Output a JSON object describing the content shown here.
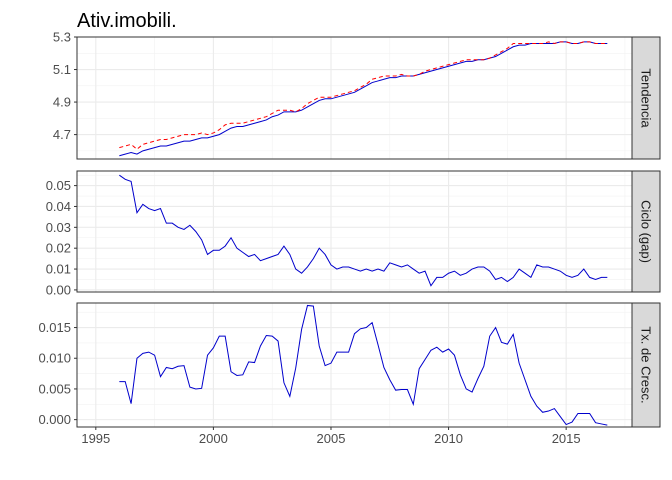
{
  "chart_data": {
    "type": "line",
    "title": "Ativ.imobili.",
    "xlabel": "",
    "ylabel": "",
    "xlim": [
      1994.2,
      2017.8
    ],
    "x_ticks": [
      "1995",
      "2000",
      "2005",
      "2010",
      "2015"
    ],
    "grid": true,
    "colors": {
      "observed": "#0000cc",
      "trend": "#ff0000"
    },
    "panels": [
      {
        "name": "Tendencia",
        "ylim": [
          4.55,
          5.3
        ],
        "y_ticks": [
          "4.7",
          "4.9",
          "5.1",
          "5.3"
        ],
        "series": [
          {
            "style": "solid",
            "color": "#0000cc",
            "x": [
              1996.0,
              1996.25,
              1996.5,
              1996.75,
              1997.0,
              1997.25,
              1997.5,
              1997.75,
              1998.0,
              1998.25,
              1998.5,
              1998.75,
              1999.0,
              1999.25,
              1999.5,
              1999.75,
              2000.0,
              2000.25,
              2000.5,
              2000.75,
              2001.0,
              2001.25,
              2001.5,
              2001.75,
              2002.0,
              2002.25,
              2002.5,
              2002.75,
              2003.0,
              2003.25,
              2003.5,
              2003.75,
              2004.0,
              2004.25,
              2004.5,
              2004.75,
              2005.0,
              2005.25,
              2005.5,
              2005.75,
              2006.0,
              2006.25,
              2006.5,
              2006.75,
              2007.0,
              2007.25,
              2007.5,
              2007.75,
              2008.0,
              2008.25,
              2008.5,
              2008.75,
              2009.0,
              2009.25,
              2009.5,
              2009.75,
              2010.0,
              2010.25,
              2010.5,
              2010.75,
              2011.0,
              2011.25,
              2011.5,
              2011.75,
              2012.0,
              2012.25,
              2012.5,
              2012.75,
              2013.0,
              2013.25,
              2013.5,
              2013.75,
              2014.0,
              2014.25,
              2014.5,
              2014.75,
              2015.0,
              2015.25,
              2015.5,
              2015.75,
              2016.0,
              2016.25,
              2016.5,
              2016.75
            ],
            "y": [
              4.57,
              4.58,
              4.59,
              4.58,
              4.6,
              4.61,
              4.62,
              4.63,
              4.63,
              4.64,
              4.65,
              4.66,
              4.66,
              4.67,
              4.68,
              4.68,
              4.69,
              4.7,
              4.72,
              4.74,
              4.75,
              4.75,
              4.76,
              4.77,
              4.78,
              4.79,
              4.81,
              4.82,
              4.84,
              4.84,
              4.84,
              4.85,
              4.87,
              4.89,
              4.91,
              4.92,
              4.92,
              4.93,
              4.94,
              4.95,
              4.96,
              4.98,
              5.0,
              5.02,
              5.03,
              5.04,
              5.05,
              5.05,
              5.06,
              5.06,
              5.06,
              5.07,
              5.08,
              5.09,
              5.1,
              5.11,
              5.12,
              5.13,
              5.14,
              5.15,
              5.15,
              5.16,
              5.16,
              5.17,
              5.18,
              5.2,
              5.22,
              5.24,
              5.25,
              5.25,
              5.26,
              5.26,
              5.26,
              5.26,
              5.26,
              5.27,
              5.27,
              5.26,
              5.26,
              5.27,
              5.27,
              5.26,
              5.26,
              5.26
            ]
          },
          {
            "style": "dashed",
            "color": "#ff0000",
            "x": [
              1996.0,
              1996.25,
              1996.5,
              1996.75,
              1997.0,
              1997.25,
              1997.5,
              1997.75,
              1998.0,
              1998.25,
              1998.5,
              1998.75,
              1999.0,
              1999.25,
              1999.5,
              1999.75,
              2000.0,
              2000.25,
              2000.5,
              2000.75,
              2001.0,
              2001.25,
              2001.5,
              2001.75,
              2002.0,
              2002.25,
              2002.5,
              2002.75,
              2003.0,
              2003.25,
              2003.5,
              2003.75,
              2004.0,
              2004.25,
              2004.5,
              2004.75,
              2005.0,
              2005.25,
              2005.5,
              2005.75,
              2006.0,
              2006.25,
              2006.5,
              2006.75,
              2007.0,
              2007.25,
              2007.5,
              2007.75,
              2008.0,
              2008.25,
              2008.5,
              2008.75,
              2009.0,
              2009.25,
              2009.5,
              2009.75,
              2010.0,
              2010.25,
              2010.5,
              2010.75,
              2011.0,
              2011.25,
              2011.5,
              2011.75,
              2012.0,
              2012.25,
              2012.5,
              2012.75,
              2013.0,
              2013.25,
              2013.5,
              2013.75,
              2014.0,
              2014.25,
              2014.5,
              2014.75,
              2015.0,
              2015.25,
              2015.5,
              2015.75,
              2016.0,
              2016.25,
              2016.5,
              2016.75
            ],
            "y": [
              4.62,
              4.63,
              4.64,
              4.61,
              4.64,
              4.65,
              4.66,
              4.67,
              4.67,
              4.68,
              4.69,
              4.7,
              4.7,
              4.7,
              4.71,
              4.7,
              4.71,
              4.73,
              4.76,
              4.77,
              4.77,
              4.77,
              4.78,
              4.79,
              4.8,
              4.81,
              4.83,
              4.85,
              4.85,
              4.85,
              4.84,
              4.86,
              4.89,
              4.91,
              4.93,
              4.93,
              4.93,
              4.94,
              4.95,
              4.96,
              4.97,
              4.99,
              5.01,
              5.04,
              5.05,
              5.06,
              5.06,
              5.06,
              5.07,
              5.06,
              5.06,
              5.07,
              5.09,
              5.1,
              5.11,
              5.12,
              5.13,
              5.14,
              5.15,
              5.16,
              5.16,
              5.16,
              5.16,
              5.17,
              5.19,
              5.21,
              5.23,
              5.26,
              5.26,
              5.26,
              5.26,
              5.26,
              5.26,
              5.27,
              5.26,
              5.27,
              5.27,
              5.26,
              5.26,
              5.27,
              5.27,
              5.26,
              5.26,
              5.26
            ]
          }
        ]
      },
      {
        "name": "Ciclo (gap)",
        "ylim": [
          -0.001,
          0.057
        ],
        "y_ticks": [
          "0.00",
          "0.01",
          "0.02",
          "0.03",
          "0.04",
          "0.05"
        ],
        "series": [
          {
            "style": "solid",
            "color": "#0000cc",
            "x": [
              1996.0,
              1996.25,
              1996.5,
              1996.75,
              1997.0,
              1997.25,
              1997.5,
              1997.75,
              1998.0,
              1998.25,
              1998.5,
              1998.75,
              1999.0,
              1999.25,
              1999.5,
              1999.75,
              2000.0,
              2000.25,
              2000.5,
              2000.75,
              2001.0,
              2001.25,
              2001.5,
              2001.75,
              2002.0,
              2002.25,
              2002.5,
              2002.75,
              2003.0,
              2003.25,
              2003.5,
              2003.75,
              2004.0,
              2004.25,
              2004.5,
              2004.75,
              2005.0,
              2005.25,
              2005.5,
              2005.75,
              2006.0,
              2006.25,
              2006.5,
              2006.75,
              2007.0,
              2007.25,
              2007.5,
              2007.75,
              2008.0,
              2008.25,
              2008.5,
              2008.75,
              2009.0,
              2009.25,
              2009.5,
              2009.75,
              2010.0,
              2010.25,
              2010.5,
              2010.75,
              2011.0,
              2011.25,
              2011.5,
              2011.75,
              2012.0,
              2012.25,
              2012.5,
              2012.75,
              2013.0,
              2013.25,
              2013.5,
              2013.75,
              2014.0,
              2014.25,
              2014.5,
              2014.75,
              2015.0,
              2015.25,
              2015.5,
              2015.75,
              2016.0,
              2016.25,
              2016.5,
              2016.75
            ],
            "y": [
              0.055,
              0.053,
              0.052,
              0.037,
              0.041,
              0.039,
              0.038,
              0.039,
              0.032,
              0.032,
              0.03,
              0.029,
              0.031,
              0.028,
              0.024,
              0.017,
              0.019,
              0.019,
              0.021,
              0.025,
              0.02,
              0.018,
              0.016,
              0.017,
              0.014,
              0.015,
              0.016,
              0.017,
              0.021,
              0.017,
              0.01,
              0.008,
              0.011,
              0.015,
              0.02,
              0.017,
              0.012,
              0.01,
              0.011,
              0.011,
              0.01,
              0.009,
              0.01,
              0.009,
              0.01,
              0.009,
              0.013,
              0.012,
              0.011,
              0.012,
              0.01,
              0.008,
              0.009,
              0.002,
              0.006,
              0.006,
              0.008,
              0.009,
              0.007,
              0.008,
              0.01,
              0.011,
              0.011,
              0.009,
              0.005,
              0.006,
              0.004,
              0.006,
              0.01,
              0.008,
              0.006,
              0.012,
              0.011,
              0.011,
              0.01,
              0.009,
              0.007,
              0.006,
              0.007,
              0.01,
              0.006,
              0.005,
              0.006,
              0.006
            ]
          }
        ]
      },
      {
        "name": "Tx. de Cresc.",
        "ylim": [
          -0.0012,
          0.019
        ],
        "y_ticks": [
          "0.000",
          "0.005",
          "0.010",
          "0.015"
        ],
        "series": [
          {
            "style": "solid",
            "color": "#0000cc",
            "x": [
              1996.0,
              1996.25,
              1996.5,
              1996.75,
              1997.0,
              1997.25,
              1997.5,
              1997.75,
              1998.0,
              1998.25,
              1998.5,
              1998.75,
              1999.0,
              1999.25,
              1999.5,
              1999.75,
              2000.0,
              2000.25,
              2000.5,
              2000.75,
              2001.0,
              2001.25,
              2001.5,
              2001.75,
              2002.0,
              2002.25,
              2002.5,
              2002.75,
              2003.0,
              2003.25,
              2003.5,
              2003.75,
              2004.0,
              2004.25,
              2004.5,
              2004.75,
              2005.0,
              2005.25,
              2005.5,
              2005.75,
              2006.0,
              2006.25,
              2006.5,
              2006.75,
              2007.0,
              2007.25,
              2007.5,
              2007.75,
              2008.0,
              2008.25,
              2008.5,
              2008.75,
              2009.0,
              2009.25,
              2009.5,
              2009.75,
              2010.0,
              2010.25,
              2010.5,
              2010.75,
              2011.0,
              2011.25,
              2011.5,
              2011.75,
              2012.0,
              2012.25,
              2012.5,
              2012.75,
              2013.0,
              2013.25,
              2013.5,
              2013.75,
              2014.0,
              2014.25,
              2014.5,
              2014.75,
              2015.0,
              2015.25,
              2015.5,
              2015.75,
              2016.0,
              2016.25,
              2016.5,
              2016.75
            ],
            "y": [
              0.0062,
              0.0062,
              0.0026,
              0.01,
              0.0108,
              0.011,
              0.0105,
              0.007,
              0.0085,
              0.0083,
              0.0087,
              0.0088,
              0.0053,
              0.005,
              0.0051,
              0.0105,
              0.0117,
              0.0136,
              0.0136,
              0.0078,
              0.0072,
              0.0073,
              0.0094,
              0.0093,
              0.012,
              0.0137,
              0.0136,
              0.0128,
              0.006,
              0.0038,
              0.0084,
              0.0147,
              0.0186,
              0.0185,
              0.012,
              0.0088,
              0.0092,
              0.011,
              0.011,
              0.011,
              0.014,
              0.0148,
              0.015,
              0.0158,
              0.0122,
              0.0085,
              0.0065,
              0.0048,
              0.0049,
              0.0049,
              0.0025,
              0.0083,
              0.0098,
              0.0113,
              0.0118,
              0.011,
              0.0115,
              0.0105,
              0.0073,
              0.005,
              0.0045,
              0.0067,
              0.0087,
              0.0136,
              0.015,
              0.0126,
              0.0123,
              0.0139,
              0.0092,
              0.0065,
              0.0038,
              0.0022,
              0.0012,
              0.0014,
              0.0018,
              0.0005,
              -0.0008,
              -0.0004,
              0.001,
              0.001,
              0.001,
              -0.0005,
              -0.0007,
              -0.0009
            ]
          }
        ]
      }
    ]
  }
}
